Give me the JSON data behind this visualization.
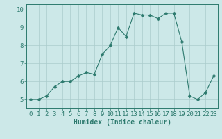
{
  "x": [
    0,
    1,
    2,
    3,
    4,
    5,
    6,
    7,
    8,
    9,
    10,
    11,
    12,
    13,
    14,
    15,
    16,
    17,
    18,
    19,
    20,
    21,
    22,
    23
  ],
  "y": [
    5.0,
    5.0,
    5.2,
    5.7,
    6.0,
    6.0,
    6.3,
    6.5,
    6.4,
    7.5,
    8.0,
    9.0,
    8.5,
    9.8,
    9.7,
    9.7,
    9.5,
    9.8,
    9.8,
    8.2,
    5.2,
    5.0,
    5.4,
    6.3
  ],
  "xlabel": "Humidex (Indice chaleur)",
  "xlim": [
    -0.5,
    23.5
  ],
  "ylim": [
    4.5,
    10.3
  ],
  "yticks": [
    5,
    6,
    7,
    8,
    9,
    10
  ],
  "xticks": [
    0,
    1,
    2,
    3,
    4,
    5,
    6,
    7,
    8,
    9,
    10,
    11,
    12,
    13,
    14,
    15,
    16,
    17,
    18,
    19,
    20,
    21,
    22,
    23
  ],
  "line_color": "#2d7a6e",
  "marker_size": 2.5,
  "bg_color": "#cce8e8",
  "grid_color": "#aacccc",
  "axis_color": "#2d7a6e",
  "tick_color": "#2d7a6e",
  "label_color": "#2d7a6e",
  "xlabel_fontsize": 7,
  "tick_fontsize": 6.5
}
